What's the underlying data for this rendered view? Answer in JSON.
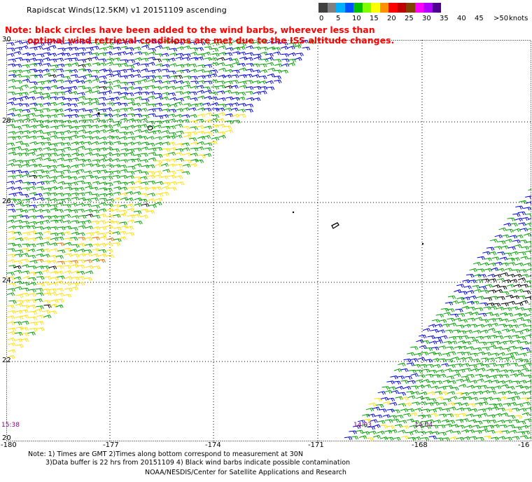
{
  "title": "Rapidscat Winds(12.5KM) v1 20151109 ascending",
  "note_lines": [
    "Note: black circles have been added to the wind barbs, wherever less than",
    "optimal wind retrieval conditions are met due to the ISS altitude changes."
  ],
  "legend": {
    "labels": [
      "0",
      "5",
      "10",
      "15",
      "20",
      "25",
      "30",
      "35",
      "40",
      "45",
      ">50",
      "knots"
    ],
    "colors": [
      "#404040",
      "#808080",
      "#00b0ff",
      "#0050ff",
      "#00c000",
      "#80ff00",
      "#ffff00",
      "#ff9000",
      "#ff0000",
      "#c00000",
      "#804000",
      "#ff00ff",
      "#b000ff",
      "#500090"
    ]
  },
  "map": {
    "lat_labels": [
      "30",
      "28",
      "26",
      "24",
      "22",
      "20"
    ],
    "lon_labels": [
      "-180",
      "-177",
      "-174",
      "-171",
      "-168",
      "-16"
    ],
    "pass_times": [
      "15:38",
      "14:03",
      "14:04"
    ],
    "wind_field_colors": {
      "blue": "#0000e6",
      "green": "#00a000",
      "yellow": "#ffe000",
      "orange": "#e07000",
      "contaminated": "#000000"
    }
  },
  "footnote_lines": [
    "Note: 1) Times are GMT 2)Times along bottom correspond to measurement at 30N",
    "3)Data buffer is 22 hrs from 20151109 4) Black wind barbs indicate possible contamination"
  ],
  "credit": "NOAA/NESDIS/Center for Satellite Applications and Research"
}
